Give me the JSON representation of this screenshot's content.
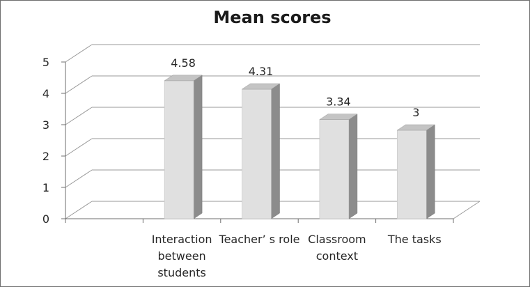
{
  "chart_data": {
    "type": "bar",
    "title": "Mean scores",
    "categories": [
      [
        "Interaction",
        "between",
        "students"
      ],
      [
        "Teacher’ s role"
      ],
      [
        "Classroom",
        "context"
      ],
      [
        "The tasks"
      ]
    ],
    "values": [
      4.58,
      4.31,
      3.34,
      3
    ],
    "data_labels": [
      "4.58",
      "4.31",
      "3.34",
      "3"
    ],
    "y_ticks": [
      "0",
      "1",
      "2",
      "3",
      "4",
      "5"
    ],
    "ylim": [
      0,
      5
    ],
    "xlabel": "",
    "ylabel": "",
    "grid": true,
    "style": "3d-column",
    "colors": {
      "bar_front": "#e0e0e0",
      "bar_side": "#8c8c8c",
      "bar_top": "#c4c4c4",
      "grid": "#9a9a9a",
      "axis": "#6e6e6e"
    }
  }
}
